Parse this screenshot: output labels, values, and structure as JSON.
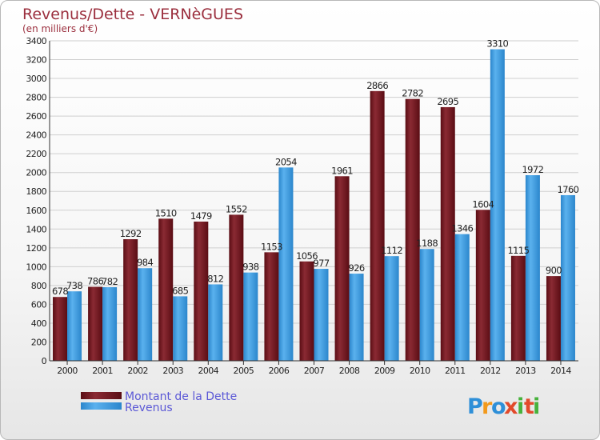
{
  "chart_data": {
    "type": "bar",
    "title": "Revenus/Dette - VERNèGUES",
    "subtitle": "(en milliers d'€)",
    "categories": [
      "2000",
      "2001",
      "2002",
      "2003",
      "2004",
      "2005",
      "2006",
      "2007",
      "2008",
      "2009",
      "2010",
      "2011",
      "2012",
      "2013",
      "2014"
    ],
    "series": [
      {
        "name": "Montant de la Dette",
        "color": "#7a1a22",
        "values": [
          678,
          786,
          1292,
          1510,
          1479,
          1552,
          1153,
          1056,
          1961,
          2866,
          2782,
          2695,
          1604,
          1115,
          900
        ]
      },
      {
        "name": "Revenus",
        "color": "#3d9be3",
        "values": [
          738,
          782,
          984,
          685,
          812,
          938,
          2054,
          977,
          926,
          1112,
          1188,
          1346,
          3310,
          1972,
          1760
        ]
      }
    ],
    "yticks": [
      "0",
      "200",
      "400",
      "600",
      "800",
      "1000",
      "1200",
      "1400",
      "1600",
      "1800",
      "2000",
      "2200",
      "2400",
      "2600",
      "2800",
      "3000",
      "3200",
      "3400"
    ],
    "ylim": [
      0,
      3400
    ],
    "grid": true,
    "legend": "bottom-left"
  },
  "brand": {
    "logo_letters": [
      "P",
      "r",
      "o",
      "x",
      "i",
      "t",
      "i"
    ],
    "logo_colors": [
      "#2e8fd8",
      "#f29a1d",
      "#2e8fd8",
      "#e24a2b",
      "#47b23c",
      "#e24a2b",
      "#47b23c"
    ]
  }
}
